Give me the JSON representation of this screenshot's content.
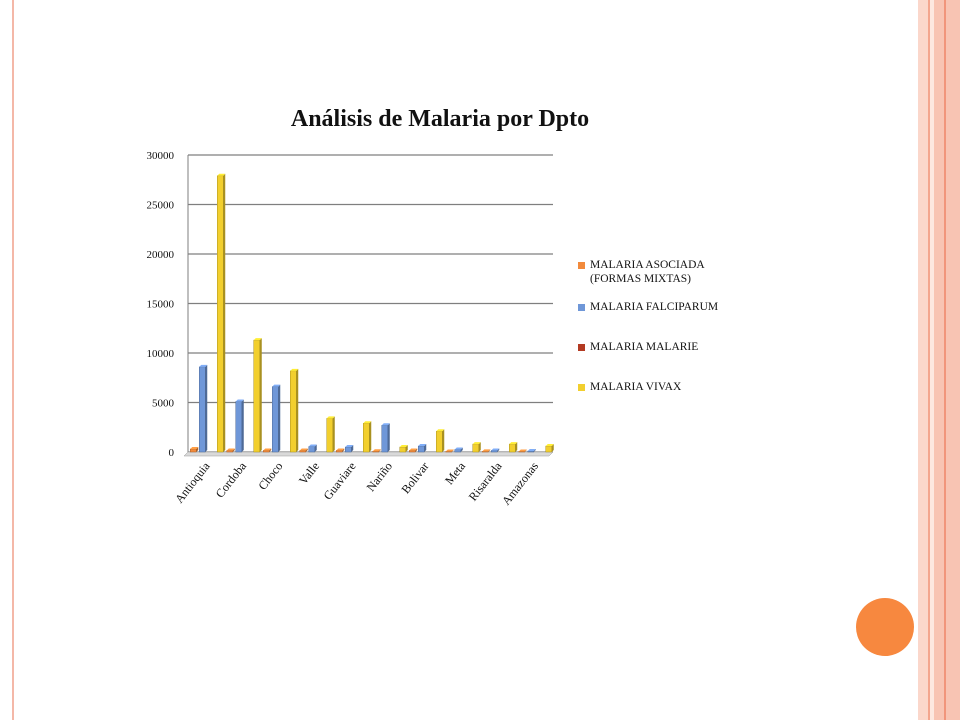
{
  "chart_data": {
    "type": "bar",
    "title": "Análisis de Malaria por Dpto",
    "categories": [
      "Antioquia",
      "Cordoba",
      "Choco",
      "Valle",
      "Guaviare",
      "Nariño",
      "Bolivar",
      "Meta",
      "Risaralda",
      "Amazonas"
    ],
    "series": [
      {
        "name": "MALARIA ASOCIADA (FORMAS MIXTAS)",
        "color": "#f28a3c",
        "values": [
          300,
          150,
          150,
          150,
          150,
          80,
          150,
          50,
          60,
          50
        ]
      },
      {
        "name": "MALARIA FALCIPARUM",
        "color": "#6f97d8",
        "values": [
          8600,
          5100,
          6600,
          550,
          500,
          2700,
          600,
          250,
          150,
          100
        ]
      },
      {
        "name": "MALARIA MALARIE",
        "color": "#b33a22",
        "values": [
          0,
          0,
          0,
          0,
          0,
          0,
          0,
          0,
          0,
          0
        ]
      },
      {
        "name": "MALARIA VIVAX",
        "color": "#f2cf2e",
        "values": [
          27900,
          11300,
          8200,
          3400,
          2900,
          500,
          2100,
          800,
          800,
          600
        ]
      }
    ],
    "yticks": [
      0,
      5000,
      10000,
      15000,
      20000,
      25000,
      30000
    ],
    "ylim": [
      0,
      30000
    ],
    "legend_position": "right",
    "grid": true
  },
  "legend": {
    "item1": "MALARIA ASOCIADA",
    "item1b": "(FORMAS MIXTAS)",
    "item2": "MALARIA FALCIPARUM",
    "item3": "MALARIA MALARIE",
    "item4": "MALARIA VIVAX"
  },
  "colors": {
    "accent_orange": "#f7883f",
    "border_pink": "#f8c4b3"
  }
}
